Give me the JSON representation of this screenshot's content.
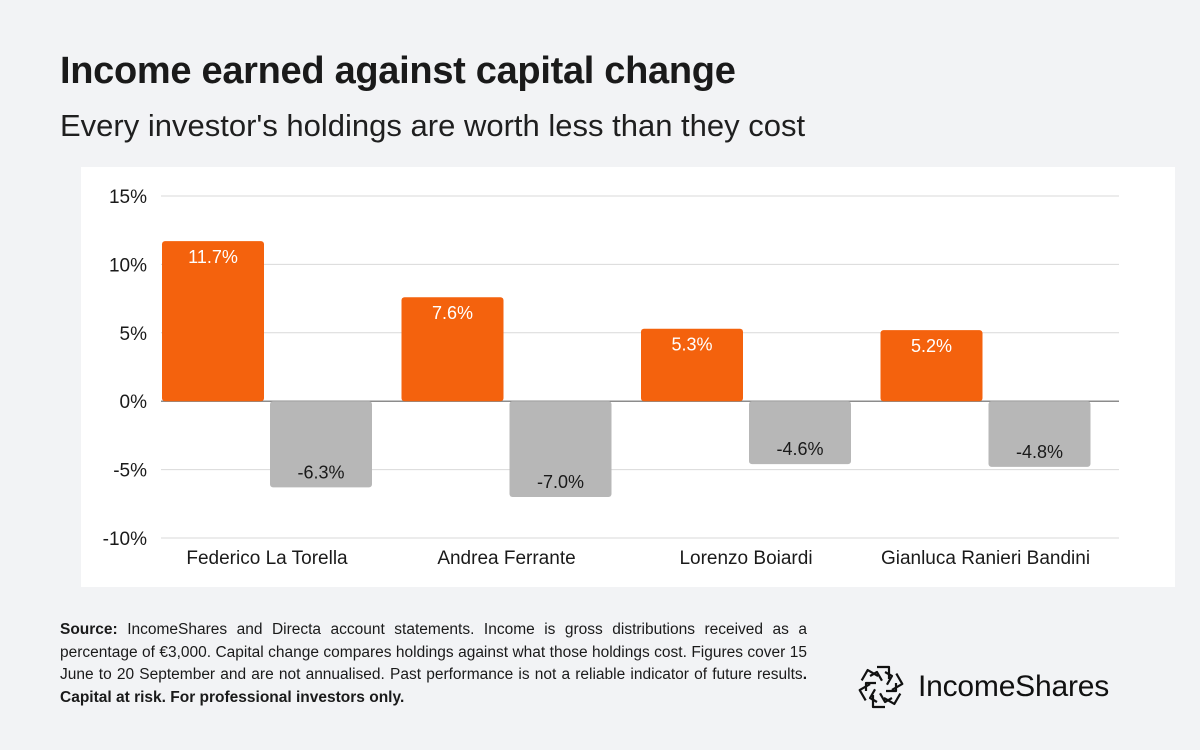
{
  "header": {
    "title": "Income earned against capital change",
    "subtitle": "Every investor's holdings are worth less than they cost"
  },
  "chart_data": {
    "type": "bar",
    "title": "Income earned against capital change",
    "subtitle": "Every investor's holdings are worth less than they cost",
    "categories": [
      "Federico La Torella",
      "Andrea Ferrante",
      "Lorenzo Boiardi",
      "Gianluca Ranieri Bandini"
    ],
    "series": [
      {
        "values": [
          11.7,
          7.6,
          5.3,
          5.2
        ],
        "color": "#f4620d",
        "labels": [
          "11.7%",
          "7.6%",
          "5.3%",
          "5.2%"
        ]
      },
      {
        "values": [
          -6.3,
          -7.0,
          -4.6,
          -4.8
        ],
        "color": "#b7b7b7",
        "labels": [
          "-6.3%",
          "-7.0%",
          "-4.6%",
          "-4.8%"
        ]
      }
    ],
    "yticks": [
      15,
      10,
      5,
      0,
      -5,
      -10
    ],
    "ytick_labels": [
      "15%",
      "10%",
      "5%",
      "0%",
      "-5%",
      "-10%"
    ],
    "ylim": [
      -10,
      15
    ],
    "grid": true,
    "legend": "none"
  },
  "footer": {
    "source_label": "Source:",
    "source_text": " IncomeShares and Directa account statements. Income is gross distributions received as a percentage of €3,000. Capital change compares holdings against what those holdings cost. Figures cover 15 June to 20 September and are not annualised. Past performance is not a reliable indicator of future results",
    "risk_text": ". Capital at risk. For professional investors only."
  },
  "brand": {
    "name": "IncomeShares",
    "icon": "incomeshares-logo-icon"
  }
}
